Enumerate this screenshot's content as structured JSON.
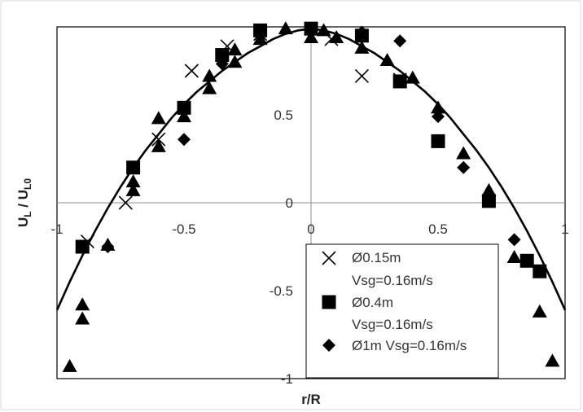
{
  "chart_data": {
    "type": "scatter",
    "xlabel": "r/R",
    "ylabel_main": "U",
    "ylabel_sub1": "L",
    "ylabel_sep": " / U",
    "ylabel_sub2": "L0",
    "xlim": [
      -1,
      1
    ],
    "ylim": [
      -1,
      1
    ],
    "x_ticks": [
      -1,
      -0.5,
      0,
      0.5,
      1
    ],
    "x_tick_labels": [
      "-1",
      "-0.5",
      "0",
      "0.5",
      "1"
    ],
    "y_ticks": [
      -1,
      -0.5,
      0,
      0.5
    ],
    "y_tick_labels": [
      "-1",
      "-0.5",
      "0",
      "0.5"
    ],
    "legend_position": "bottom-right",
    "series": [
      {
        "name_line1": "Ø0.15m",
        "name_line2": "Vsg=0.16m/s",
        "marker": "x",
        "points": [
          [
            -0.88,
            -0.22
          ],
          [
            -0.73,
            0.0
          ],
          [
            -0.6,
            0.36
          ],
          [
            -0.47,
            0.75
          ],
          [
            -0.33,
            0.89
          ],
          [
            -0.2,
            0.96
          ],
          [
            0.08,
            0.93
          ],
          [
            0.2,
            0.72
          ],
          [
            0.35,
            0.7
          ]
        ]
      },
      {
        "name_line1": "Ø0.4m",
        "name_line2": "Vsg=0.16m/s",
        "marker": "square",
        "points": [
          [
            -0.9,
            -0.25
          ],
          [
            -0.7,
            0.2
          ],
          [
            -0.5,
            0.54
          ],
          [
            -0.35,
            0.84
          ],
          [
            -0.2,
            0.98
          ],
          [
            0.0,
            0.99
          ],
          [
            0.2,
            0.95
          ],
          [
            0.35,
            0.69
          ],
          [
            0.5,
            0.35
          ],
          [
            0.7,
            0.01
          ],
          [
            0.85,
            -0.33
          ],
          [
            0.9,
            -0.39
          ]
        ]
      },
      {
        "name_line1": "Ø1m Vsg=0.16m/s",
        "name_line2": "",
        "marker": "diamond",
        "points": [
          [
            -0.8,
            -0.25
          ],
          [
            -0.5,
            0.36
          ],
          [
            -0.35,
            0.79
          ],
          [
            0.0,
            0.98
          ],
          [
            0.2,
            0.97
          ],
          [
            0.35,
            0.92
          ],
          [
            0.5,
            0.49
          ],
          [
            0.6,
            0.2
          ],
          [
            0.7,
            0.02
          ],
          [
            0.8,
            -0.21
          ]
        ]
      },
      {
        "name_line1": "",
        "name_line2": "",
        "marker": "triangle",
        "points": [
          [
            -0.95,
            -0.93
          ],
          [
            -0.9,
            -0.58
          ],
          [
            -0.9,
            -0.66
          ],
          [
            -0.8,
            -0.24
          ],
          [
            -0.7,
            0.07
          ],
          [
            -0.7,
            0.12
          ],
          [
            -0.6,
            0.32
          ],
          [
            -0.6,
            0.48
          ],
          [
            -0.5,
            0.49
          ],
          [
            -0.4,
            0.65
          ],
          [
            -0.4,
            0.72
          ],
          [
            -0.3,
            0.8
          ],
          [
            -0.3,
            0.87
          ],
          [
            -0.2,
            0.93
          ],
          [
            -0.1,
            0.99
          ],
          [
            0.0,
            0.94
          ],
          [
            0.05,
            0.98
          ],
          [
            0.1,
            0.94
          ],
          [
            0.2,
            0.88
          ],
          [
            0.3,
            0.81
          ],
          [
            0.4,
            0.71
          ],
          [
            0.5,
            0.54
          ],
          [
            0.6,
            0.28
          ],
          [
            0.7,
            0.07
          ],
          [
            0.8,
            -0.31
          ],
          [
            0.9,
            -0.62
          ],
          [
            0.95,
            -0.9
          ]
        ]
      }
    ],
    "fit_curve": {
      "points": [
        [
          -1,
          -0.61
        ],
        [
          -0.95,
          -0.45
        ],
        [
          -0.9,
          -0.3
        ],
        [
          -0.85,
          -0.16
        ],
        [
          -0.8,
          -0.03
        ],
        [
          -0.75,
          0.09
        ],
        [
          -0.7,
          0.2
        ],
        [
          -0.65,
          0.3
        ],
        [
          -0.6,
          0.39
        ],
        [
          -0.55,
          0.48
        ],
        [
          -0.5,
          0.56
        ],
        [
          -0.45,
          0.63
        ],
        [
          -0.4,
          0.69
        ],
        [
          -0.35,
          0.75
        ],
        [
          -0.3,
          0.8
        ],
        [
          -0.25,
          0.85
        ],
        [
          -0.2,
          0.89
        ],
        [
          -0.15,
          0.93
        ],
        [
          -0.1,
          0.96
        ],
        [
          -0.05,
          0.98
        ],
        [
          0.0,
          0.99
        ],
        [
          0.05,
          0.98
        ],
        [
          0.1,
          0.96
        ],
        [
          0.15,
          0.93
        ],
        [
          0.2,
          0.89
        ],
        [
          0.25,
          0.85
        ],
        [
          0.3,
          0.8
        ],
        [
          0.35,
          0.75
        ],
        [
          0.4,
          0.69
        ],
        [
          0.45,
          0.63
        ],
        [
          0.5,
          0.56
        ],
        [
          0.55,
          0.48
        ],
        [
          0.6,
          0.39
        ],
        [
          0.65,
          0.3
        ],
        [
          0.7,
          0.2
        ],
        [
          0.75,
          0.09
        ],
        [
          0.8,
          -0.03
        ],
        [
          0.85,
          -0.16
        ],
        [
          0.9,
          -0.3
        ],
        [
          0.95,
          -0.45
        ],
        [
          1,
          -0.61
        ]
      ]
    }
  },
  "colors": {
    "marker": "#000000",
    "axis": "#8c8c8c",
    "plot_border": "#000000",
    "legend_border": "#000000",
    "page_border": "#d9d9d9"
  }
}
